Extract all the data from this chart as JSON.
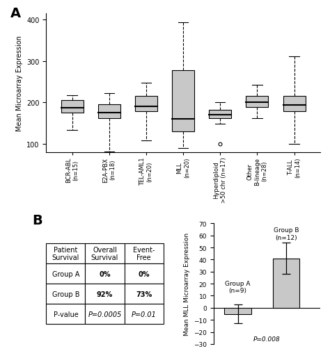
{
  "panel_a": {
    "ylabel": "Mean Microarray Expression",
    "ylim": [
      80,
      415
    ],
    "yticks": [
      100,
      200,
      300,
      400
    ],
    "boxes": [
      {
        "label": "BCR-ABL\n(n=15)",
        "q1": 175,
        "median": 187,
        "q3": 205,
        "whislo": 133,
        "whishi": 218,
        "fliers": []
      },
      {
        "label": "E2A-PBX\n(n=18)",
        "q1": 162,
        "median": 175,
        "q3": 196,
        "whislo": 82,
        "whishi": 222,
        "fliers": []
      },
      {
        "label": "TEL-AML1\n(n=20)",
        "q1": 178,
        "median": 190,
        "q3": 215,
        "whislo": 108,
        "whishi": 248,
        "fliers": []
      },
      {
        "label": "MLL\n(n=20)",
        "q1": 130,
        "median": 160,
        "q3": 278,
        "whislo": 90,
        "whishi": 393,
        "fliers": []
      },
      {
        "label": "Hyperdiploid\n>50 chr (n=17)",
        "q1": 162,
        "median": 170,
        "q3": 182,
        "whislo": 148,
        "whishi": 200,
        "fliers": [
          100
        ]
      },
      {
        "label": "Other\nB-lineage\n(n=28)",
        "q1": 188,
        "median": 200,
        "q3": 215,
        "whislo": 162,
        "whishi": 243,
        "fliers": []
      },
      {
        "label": "T-ALL\n(n=14)",
        "q1": 178,
        "median": 193,
        "q3": 215,
        "whislo": 100,
        "whishi": 312,
        "fliers": []
      }
    ],
    "box_color": "#c8c8c8",
    "median_color": "#000000"
  },
  "panel_b_table": {
    "col_labels": [
      "Patient\nSurvival",
      "Overall\nSurvival",
      "Event-\nFree"
    ],
    "rows": [
      [
        "Group A",
        "0%",
        "0%"
      ],
      [
        "Group B",
        "92%",
        "73%"
      ],
      [
        "P-value",
        "P=0.0005",
        "P=0.01"
      ]
    ]
  },
  "panel_b_bar": {
    "ylabel": "Mean MLL Microarray Expression",
    "ylim": [
      -30,
      70
    ],
    "yticks": [
      -30,
      -20,
      -10,
      0,
      10,
      20,
      30,
      40,
      50,
      60,
      70
    ],
    "values": [
      -5,
      41
    ],
    "errors": [
      8,
      13
    ],
    "bar_color": "#c8c8c8",
    "pvalue_text": "P=0.008"
  }
}
